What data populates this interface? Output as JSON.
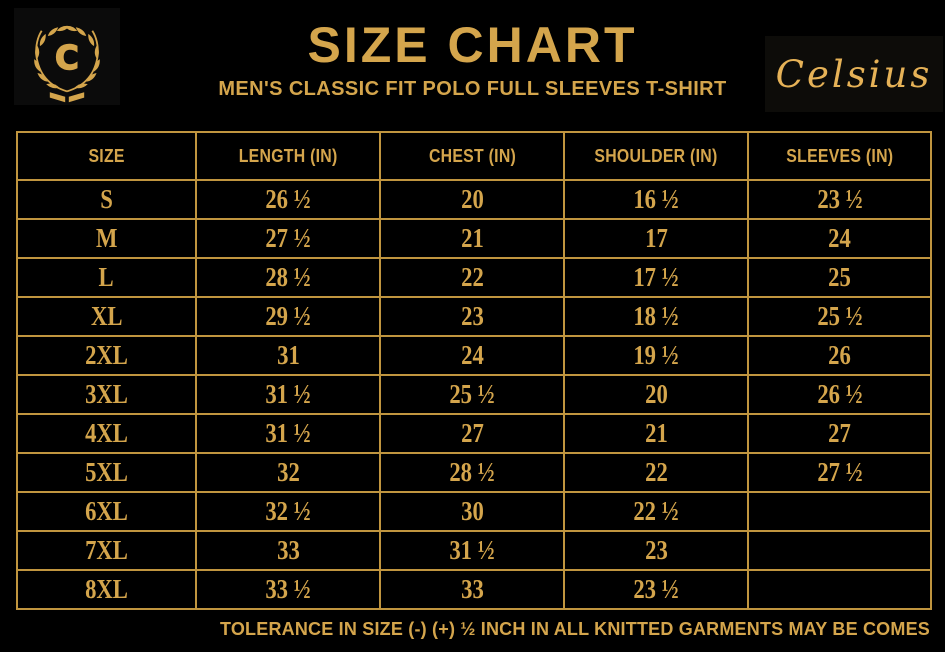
{
  "brand": {
    "logo_letter": "C",
    "wordmark": "Celsius"
  },
  "header": {
    "title": "SIZE CHART",
    "subtitle": "MEN'S CLASSIC FIT POLO FULL SLEEVES T-SHIRT"
  },
  "chart_data": {
    "type": "table",
    "title": "SIZE CHART",
    "subtitle": "MEN'S CLASSIC FIT POLO FULL SLEEVES T-SHIRT",
    "columns": [
      "SIZE",
      "LENGTH (IN)",
      "CHEST (IN)",
      "SHOULDER (IN)",
      "SLEEVES (IN)"
    ],
    "rows": [
      [
        "S",
        "26 ½",
        "20",
        "16 ½",
        "23 ½"
      ],
      [
        "M",
        "27 ½",
        "21",
        "17",
        "24"
      ],
      [
        "L",
        "28 ½",
        "22",
        "17 ½",
        "25"
      ],
      [
        "XL",
        "29 ½",
        "23",
        "18 ½",
        "25 ½"
      ],
      [
        "2XL",
        "31",
        "24",
        "19 ½",
        "26"
      ],
      [
        "3XL",
        "31 ½",
        "25 ½",
        "20",
        "26 ½"
      ],
      [
        "4XL",
        "31 ½",
        "27",
        "21",
        "27"
      ],
      [
        "5XL",
        "32",
        "28 ½",
        "22",
        "27 ½"
      ],
      [
        "6XL",
        "32 ½",
        "30",
        "22 ½",
        ""
      ],
      [
        "7XL",
        "33",
        "31 ½",
        "23",
        ""
      ],
      [
        "8XL",
        "33 ½",
        "33",
        "23 ½",
        ""
      ]
    ]
  },
  "footer": {
    "note": "TOLERANCE IN SIZE (-) (+)  ½ INCH IN ALL KNITTED GARMENTS MAY BE COMES"
  },
  "colors": {
    "background": "#000000",
    "gold": "#d4a54c",
    "gold_bright": "#e6b257",
    "border": "#c0953f"
  }
}
